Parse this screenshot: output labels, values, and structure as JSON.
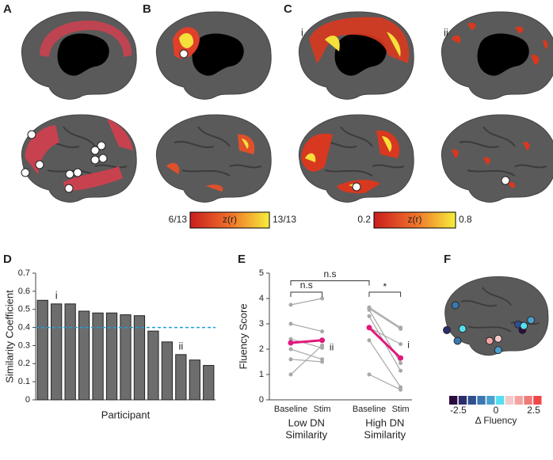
{
  "panel_labels": [
    "A",
    "B",
    "C",
    "D",
    "E",
    "F"
  ],
  "panel_c_labels": [
    "i",
    "ii"
  ],
  "colorbar_b": {
    "title": "z(r)",
    "ticks": [
      "6/13",
      "13/13"
    ]
  },
  "colorbar_c": {
    "title": "z(r)",
    "ticks": [
      0.2,
      0.8
    ]
  },
  "colorbar_f": {
    "title": "Δ Fluency",
    "ticks": [
      -2.5,
      0,
      2.5
    ],
    "lim": [
      -3.1,
      3.1
    ],
    "colors": [
      "#2d0b3e",
      "#2c2e6b",
      "#2f4f8f",
      "#3b78b0",
      "#4aa0cf",
      "#55e0f0",
      "#f4c9c9",
      "#f4a3a3",
      "#f07a7a",
      "#f04848"
    ]
  },
  "chart_data": [
    {
      "type": "bar",
      "ylabel": "Similarity Coefficient",
      "xlabel": "Participant",
      "categories": [
        null,
        null,
        null,
        null,
        null,
        null,
        null,
        null,
        null,
        null,
        null,
        null,
        null
      ],
      "values": [
        0.55,
        0.53,
        0.53,
        0.49,
        0.48,
        0.48,
        0.47,
        0.465,
        0.38,
        0.32,
        0.25,
        0.22,
        0.19
      ],
      "color": "#6d6d6d",
      "ylim": [
        0,
        0.7
      ],
      "yticks": [
        0,
        0.1,
        0.2,
        0.3,
        0.4,
        0.5,
        0.6,
        0.7
      ],
      "reference_line": {
        "value": 0.4,
        "color": "#1e9fd8"
      },
      "annotations": [
        {
          "text": "i"
        },
        {
          "text": "ii"
        }
      ]
    },
    {
      "type": "line",
      "ylabel": "Fluency Score",
      "categories": [
        "Baseline",
        "Stim",
        "Baseline",
        "Stim"
      ],
      "groups": [
        [
          "Low DN",
          "Similarity"
        ],
        [
          "High DN",
          "Similarity"
        ]
      ],
      "ylim": [
        0,
        5
      ],
      "yticks": [
        0,
        1,
        2,
        3,
        4,
        5
      ],
      "series": [
        {
          "color": "#a8a8a8",
          "values": [
            3.75,
            4.0,
            null,
            null
          ]
        },
        {
          "color": "#a8a8a8",
          "values": [
            3.0,
            2.7,
            null,
            null
          ]
        },
        {
          "color": "#a8a8a8",
          "values": [
            2.4,
            2.05,
            null,
            null
          ]
        },
        {
          "color": "#a8a8a8",
          "values": [
            2.0,
            1.6,
            null,
            null
          ]
        },
        {
          "color": "#a8a8a8",
          "values": [
            1.6,
            1.5,
            null,
            null
          ]
        },
        {
          "color": "#a8a8a8",
          "values": [
            1.0,
            2.15,
            null,
            null
          ]
        },
        {
          "color": "#a8a8a8",
          "values": [
            null,
            null,
            3.65,
            2.85
          ]
        },
        {
          "color": "#a8a8a8",
          "values": [
            null,
            null,
            3.6,
            2.8
          ]
        },
        {
          "color": "#a8a8a8",
          "values": [
            null,
            null,
            3.55,
            1.45
          ]
        },
        {
          "color": "#a8a8a8",
          "values": [
            null,
            null,
            3.3,
            1.15
          ]
        },
        {
          "color": "#a8a8a8",
          "values": [
            null,
            null,
            2.85,
            2.2
          ]
        },
        {
          "color": "#a8a8a8",
          "values": [
            null,
            null,
            2.35,
            0.5
          ]
        },
        {
          "color": "#a8a8a8",
          "values": [
            null,
            null,
            1.0,
            0.4
          ]
        },
        {
          "color": "#e0197d",
          "values": [
            2.25,
            2.35,
            null,
            null
          ]
        },
        {
          "color": "#e0197d",
          "values": [
            null,
            null,
            2.85,
            1.65
          ]
        }
      ],
      "annotations": [
        {
          "text": "n.s"
        },
        {
          "text": "n.s"
        },
        {
          "text": "*"
        },
        {
          "text": "ii"
        },
        {
          "text": "i"
        }
      ]
    }
  ]
}
